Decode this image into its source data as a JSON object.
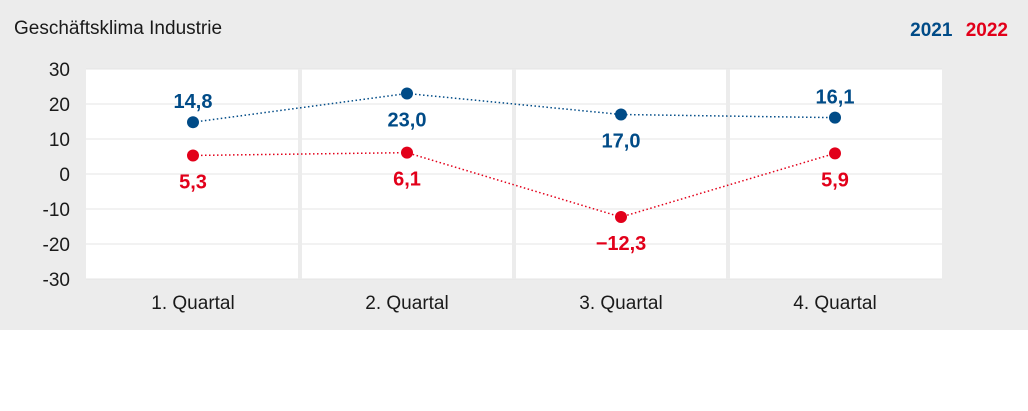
{
  "title": "Geschäftsklima Industrie",
  "colors": {
    "series_2021": "#004b87",
    "series_2022": "#e2001a",
    "panel": "#ececec",
    "grid": "#e4e4e4",
    "text": "#1a1a1a"
  },
  "chart_data": {
    "type": "line",
    "title": "Geschäftsklima Industrie",
    "categories": [
      "1. Quartal",
      "2. Quartal",
      "3. Quartal",
      "4. Quartal"
    ],
    "series": [
      {
        "name": "2021",
        "values": [
          14.8,
          23.0,
          17.0,
          16.1
        ],
        "labels": [
          "14,8",
          "23,0",
          "17,0",
          "16,1"
        ],
        "label_pos": [
          "above",
          "below",
          "below",
          "above"
        ],
        "color": "#004b87"
      },
      {
        "name": "2022",
        "values": [
          5.3,
          6.1,
          -12.3,
          5.9
        ],
        "labels": [
          "5,3",
          "6,1",
          "−12,3",
          "5,9"
        ],
        "label_pos": [
          "below",
          "below",
          "below",
          "below"
        ],
        "color": "#e2001a"
      }
    ],
    "y_ticks": [
      30,
      20,
      10,
      0,
      -10,
      -20,
      -30
    ],
    "y_tick_labels": [
      "30",
      "20",
      "10",
      "0",
      "-10",
      "-20",
      "-30"
    ],
    "ylim": [
      -30,
      30
    ],
    "grid": true,
    "legend_position": "top-right"
  }
}
